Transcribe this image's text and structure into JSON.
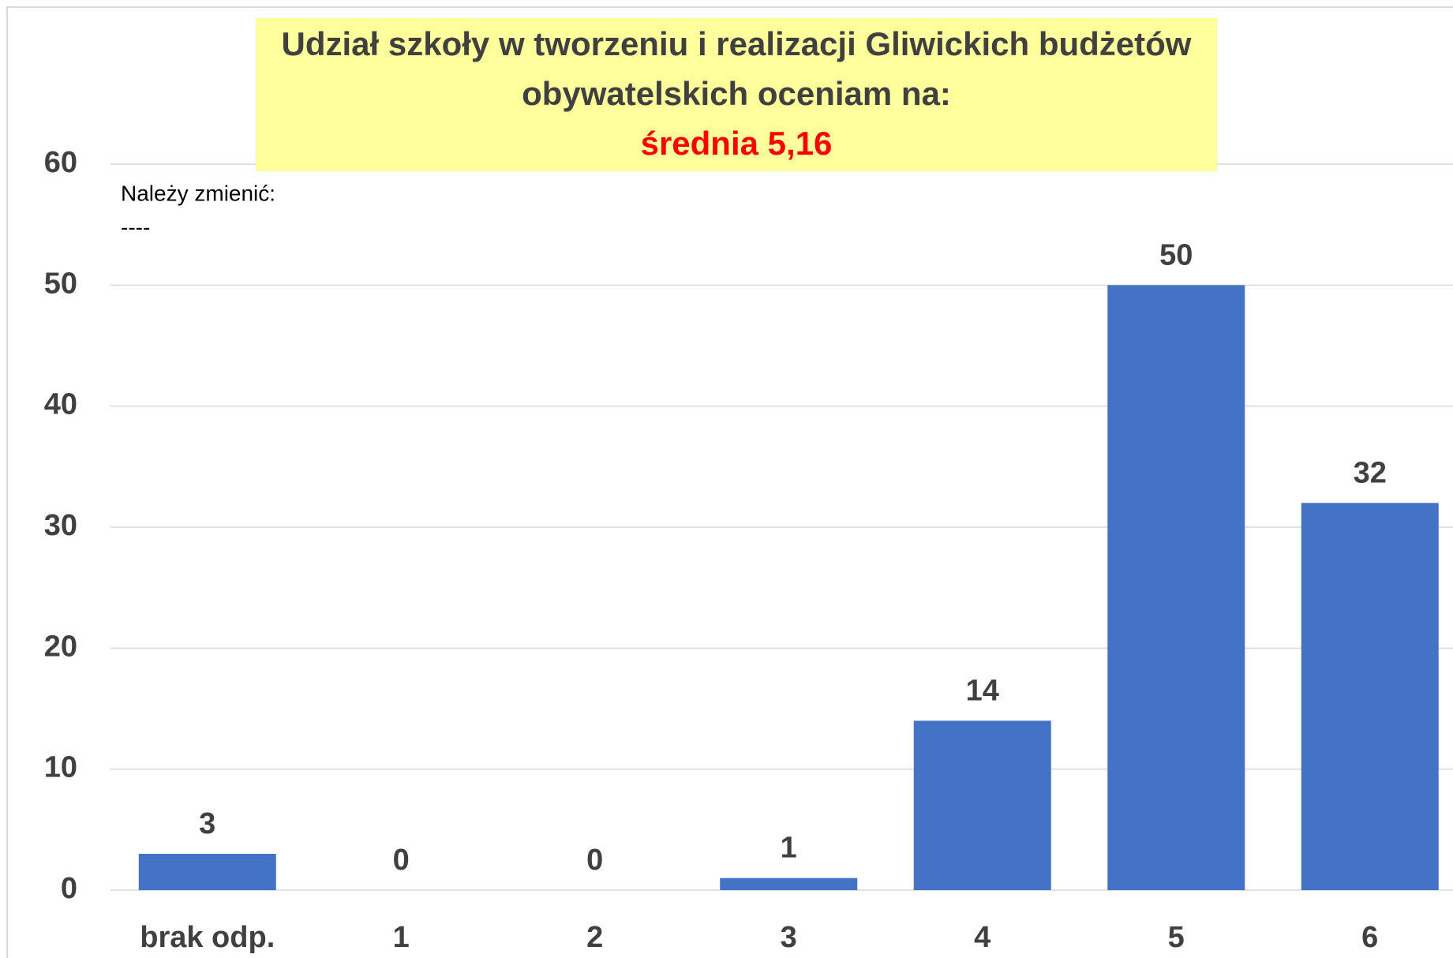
{
  "chart_data": {
    "type": "bar",
    "title": [
      "Udział szkoły w tworzeniu i realizacji Gliwickich budżetów",
      "obywatelskich oceniam na:"
    ],
    "subtitle": "średnia  5,16",
    "annotations": [
      "Należy zmienić:",
      "----"
    ],
    "categories": [
      "brak odp.",
      "1",
      "2",
      "3",
      "4",
      "5",
      "6"
    ],
    "values": [
      3,
      0,
      0,
      1,
      14,
      50,
      32
    ],
    "color": "#4472c4",
    "ylim": [
      0,
      60
    ],
    "yticks": [
      0,
      10,
      20,
      30,
      40,
      50,
      60
    ],
    "grid": true
  }
}
